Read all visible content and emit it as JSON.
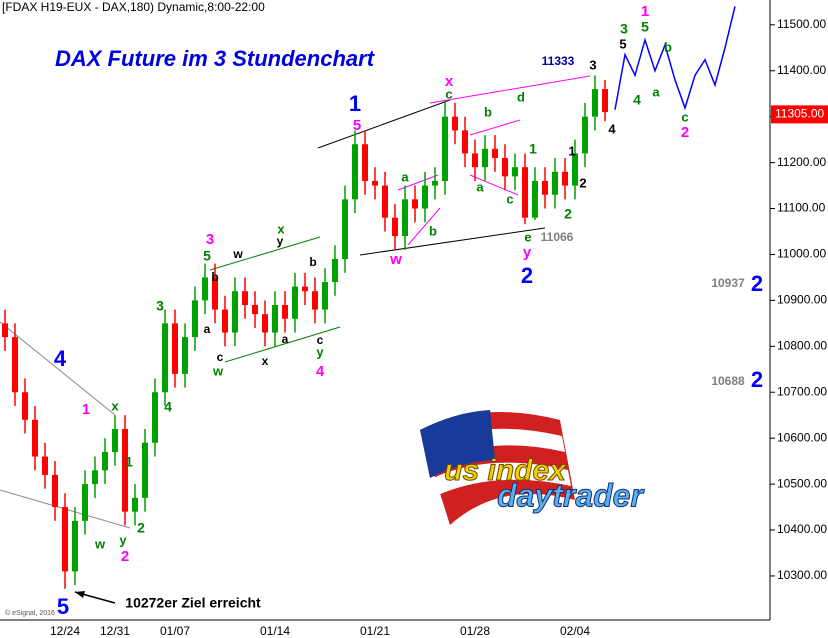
{
  "chart_data": {
    "type": "candlestick",
    "header": "[FDAX H19-EUX - DAX,180) Dynamic,8:00-22:00",
    "title": "DAX Future im 3 Stundenchart",
    "copyright": "© eSignal, 2016",
    "logo": {
      "line1": "us index",
      "line2": "daytrader"
    },
    "categories": [
      null,
      null,
      null,
      null,
      null,
      null,
      "12/24",
      null,
      null,
      null,
      null,
      "12/31",
      null,
      null,
      null,
      null,
      null,
      "01/07",
      null,
      null,
      null,
      null,
      null,
      null,
      null,
      null,
      null,
      "01/14",
      null,
      null,
      null,
      null,
      null,
      null,
      null,
      null,
      null,
      "01/21",
      null,
      null,
      null,
      null,
      null,
      null,
      null,
      null,
      null,
      "01/28",
      null,
      null,
      null,
      null,
      null,
      null,
      null,
      null,
      null,
      "02/04",
      null,
      null,
      null,
      null,
      null,
      null,
      null,
      null,
      null,
      null,
      null,
      null,
      null,
      null,
      null,
      null
    ],
    "open": [
      10850,
      10820,
      10700,
      10640,
      10560,
      10520,
      10450,
      10310,
      10420,
      10500,
      10530,
      10570,
      10620,
      10440,
      10470,
      10590,
      10700,
      10850,
      10740,
      10820,
      10900,
      10950,
      10880,
      10830,
      10920,
      10890,
      10870,
      10830,
      10890,
      10860,
      10930,
      10920,
      10880,
      10940,
      10990,
      11120,
      11240,
      11160,
      11150,
      11080,
      11040,
      11120,
      11100,
      11150,
      11160,
      11300,
      11270,
      11220,
      11190,
      11230,
      11210,
      11170,
      11190,
      11080,
      11160,
      11130,
      11180,
      11150,
      11220,
      11300,
      11360,
      null,
      null,
      null,
      null,
      null,
      null,
      null,
      null,
      null,
      null,
      null,
      null,
      null
    ],
    "high": [
      10880,
      10850,
      10730,
      10670,
      10590,
      10550,
      10480,
      10450,
      10530,
      10560,
      10600,
      10650,
      10650,
      10500,
      10620,
      10730,
      10880,
      10880,
      10850,
      10930,
      10980,
      10980,
      10910,
      10950,
      10950,
      10920,
      10900,
      10920,
      10920,
      10960,
      10960,
      10950,
      10970,
      11020,
      11150,
      11270,
      11270,
      11190,
      11180,
      11110,
      11150,
      11150,
      11180,
      11190,
      11333,
      11330,
      11300,
      11250,
      11260,
      11260,
      11240,
      11220,
      11220,
      11190,
      11190,
      11210,
      11210,
      11250,
      11330,
      11390,
      11380,
      null,
      null,
      null,
      null,
      null,
      null,
      null,
      null,
      null,
      null,
      null,
      null,
      null
    ],
    "low": [
      10790,
      10670,
      10610,
      10530,
      10490,
      10420,
      10272,
      10280,
      10390,
      10470,
      10500,
      10540,
      10410,
      10410,
      10440,
      10560,
      10670,
      10710,
      10710,
      10790,
      10870,
      10850,
      10800,
      10800,
      10860,
      10840,
      10800,
      10800,
      10830,
      10830,
      10890,
      10850,
      10850,
      10910,
      10960,
      11090,
      11130,
      11120,
      11050,
      11010,
      11010,
      11070,
      11070,
      11120,
      11130,
      11240,
      11190,
      11160,
      11160,
      11180,
      11140,
      11140,
      11066,
      11075,
      11100,
      11100,
      11120,
      11120,
      11190,
      11270,
      11290,
      null,
      null,
      null,
      null,
      null,
      null,
      null,
      null,
      null,
      null,
      null,
      null,
      null
    ],
    "close": [
      10820,
      10700,
      10640,
      10560,
      10520,
      10450,
      10310,
      10420,
      10500,
      10530,
      10570,
      10620,
      10440,
      10470,
      10590,
      10700,
      10850,
      10740,
      10820,
      10900,
      10950,
      10880,
      10830,
      10920,
      10890,
      10870,
      10830,
      10890,
      10860,
      10930,
      10920,
      10880,
      10940,
      10990,
      11120,
      11240,
      11160,
      11150,
      11080,
      11040,
      11120,
      11100,
      11150,
      11160,
      11300,
      11270,
      11220,
      11190,
      11230,
      11210,
      11170,
      11190,
      11080,
      11160,
      11130,
      11180,
      11150,
      11220,
      11300,
      11360,
      11310,
      null,
      null,
      null,
      null,
      null,
      null,
      null,
      null,
      null,
      null,
      null,
      null,
      null
    ],
    "up_color": "#00a000",
    "down_color": "#ff0000",
    "projection": {
      "color": "#0000ff",
      "values": [
        null,
        null,
        null,
        null,
        null,
        null,
        null,
        null,
        null,
        null,
        null,
        null,
        null,
        null,
        null,
        null,
        null,
        null,
        null,
        null,
        null,
        null,
        null,
        null,
        null,
        null,
        null,
        null,
        null,
        null,
        null,
        null,
        null,
        null,
        null,
        null,
        null,
        null,
        null,
        null,
        null,
        null,
        null,
        null,
        null,
        null,
        null,
        null,
        null,
        null,
        null,
        null,
        null,
        null,
        null,
        null,
        null,
        null,
        null,
        null,
        null,
        11315,
        11435,
        11390,
        11467,
        11400,
        11456,
        11380,
        11319,
        11390,
        11424,
        11369,
        11450,
        11540
      ]
    },
    "ylim": [
      10215,
      11554
    ],
    "yticks": [
      {
        "value": 11500,
        "label": "11500.00"
      },
      {
        "value": 11400,
        "label": "11400.00"
      },
      {
        "value": 11300,
        "label": "11300.00"
      },
      {
        "value": 11200,
        "label": "11200.00"
      },
      {
        "value": 11100,
        "label": "11100.00"
      },
      {
        "value": 11000,
        "label": "11000.00"
      },
      {
        "value": 10900,
        "label": "10900.00"
      },
      {
        "value": 10800,
        "label": "10800.00"
      },
      {
        "value": 10700,
        "label": "10700.00"
      },
      {
        "value": 10600,
        "label": "10600.00"
      },
      {
        "value": 10500,
        "label": "10500.00"
      },
      {
        "value": 10400,
        "label": "10400.00"
      },
      {
        "value": 10300,
        "label": "10300.00"
      }
    ],
    "last_price": {
      "value": 11305,
      "label": "11305.00",
      "color": "#ff0000"
    },
    "annotations": [
      {
        "text": "4",
        "color": "#0000ff"
      },
      {
        "text": "1",
        "color": "#0000ff"
      },
      {
        "text": "2",
        "color": "#0000ff"
      },
      {
        "text": "5",
        "color": "#0000ff"
      },
      {
        "text": "2",
        "color": "#0000ff"
      },
      {
        "text": "2",
        "color": "#0000ff"
      },
      {
        "text": "1",
        "color": "#ff00ff"
      },
      {
        "text": "2",
        "color": "#ff00ff"
      },
      {
        "text": "3",
        "color": "#ff00ff"
      },
      {
        "text": "4",
        "color": "#ff00ff"
      },
      {
        "text": "5",
        "color": "#ff00ff"
      },
      {
        "text": "x",
        "color": "#ff00ff"
      },
      {
        "text": "w",
        "color": "#ff00ff"
      },
      {
        "text": "y",
        "color": "#ff00ff"
      },
      {
        "text": "2",
        "color": "#ff00ff"
      },
      {
        "text": "1",
        "color": "#ff00ff"
      },
      {
        "text": "x",
        "color": "#008000"
      },
      {
        "text": "1",
        "color": "#008000"
      },
      {
        "text": "w",
        "color": "#008000"
      },
      {
        "text": "y",
        "color": "#008000"
      },
      {
        "text": "2",
        "color": "#008000"
      },
      {
        "text": "3",
        "color": "#008000"
      },
      {
        "text": "4",
        "color": "#008000"
      },
      {
        "text": "5",
        "color": "#008000"
      },
      {
        "text": "x",
        "color": "#008000"
      },
      {
        "text": "w",
        "color": "#008000"
      },
      {
        "text": "y",
        "color": "#008000"
      },
      {
        "text": "a",
        "color": "#008000"
      },
      {
        "text": "b",
        "color": "#008000"
      },
      {
        "text": "c",
        "color": "#008000"
      },
      {
        "text": "b",
        "color": "#008000"
      },
      {
        "text": "d",
        "color": "#008000"
      },
      {
        "text": "a",
        "color": "#008000"
      },
      {
        "text": "c",
        "color": "#008000"
      },
      {
        "text": "1",
        "color": "#008000"
      },
      {
        "text": "e",
        "color": "#008000"
      },
      {
        "text": "2",
        "color": "#008000"
      },
      {
        "text": "3",
        "color": "#008000"
      },
      {
        "text": "5",
        "color": "#008000"
      },
      {
        "text": "4",
        "color": "#008000"
      },
      {
        "text": "b",
        "color": "#008000"
      },
      {
        "text": "a",
        "color": "#008000"
      },
      {
        "text": "c",
        "color": "#008000"
      },
      {
        "text": "w",
        "color": "#000000"
      },
      {
        "text": "y",
        "color": "#000000"
      },
      {
        "text": "b",
        "color": "#000000"
      },
      {
        "text": "a",
        "color": "#000000"
      },
      {
        "text": "c",
        "color": "#000000"
      },
      {
        "text": "x",
        "color": "#000000"
      },
      {
        "text": "a",
        "color": "#000000"
      },
      {
        "text": "b",
        "color": "#000000"
      },
      {
        "text": "c",
        "color": "#000000"
      },
      {
        "text": "3",
        "color": "#000000"
      },
      {
        "text": "5",
        "color": "#000000"
      },
      {
        "text": "1",
        "color": "#000000"
      },
      {
        "text": "2",
        "color": "#000000"
      },
      {
        "text": "4",
        "color": "#000000"
      },
      {
        "text": "11066",
        "color": "#808080"
      },
      {
        "text": "10937",
        "color": "#808080"
      },
      {
        "text": "10688",
        "color": "#808080"
      },
      {
        "text": "11333",
        "color": "#0000a0"
      },
      {
        "text": "10272er Ziel erreicht",
        "color": "#000000"
      }
    ]
  }
}
